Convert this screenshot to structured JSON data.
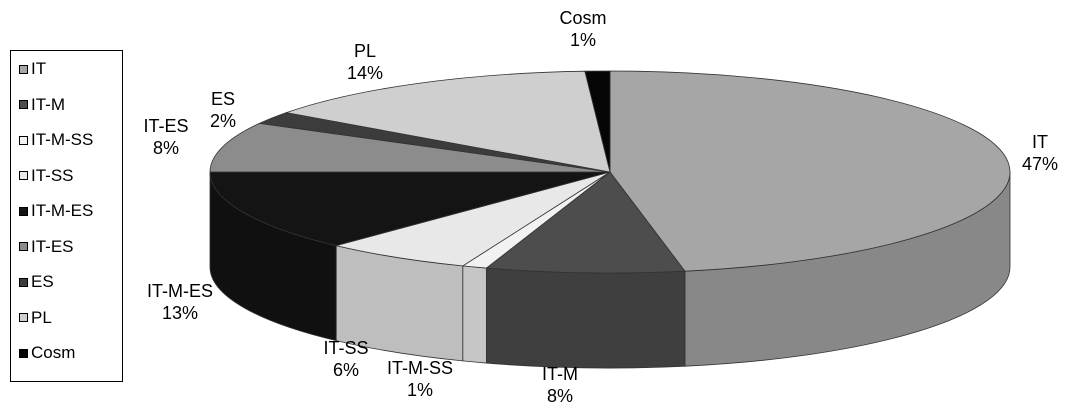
{
  "chart_data": {
    "type": "pie",
    "title": "",
    "style": "3d",
    "legend_position": "left",
    "slices": [
      {
        "label": "IT",
        "percent_label": "47%",
        "value": 47,
        "color": "#a6a6a6"
      },
      {
        "label": "IT-M",
        "percent_label": "8%",
        "value": 8,
        "color": "#4d4d4d"
      },
      {
        "label": "IT-M-SS",
        "percent_label": "1%",
        "value": 1,
        "color": "#f2f2f2"
      },
      {
        "label": "IT-SS",
        "percent_label": "6%",
        "value": 6,
        "color": "#e8e8e8"
      },
      {
        "label": "IT-M-ES",
        "percent_label": "13%",
        "value": 13,
        "color": "#141414"
      },
      {
        "label": "IT-ES",
        "percent_label": "8%",
        "value": 8,
        "color": "#8c8c8c"
      },
      {
        "label": "ES",
        "percent_label": "2%",
        "value": 2,
        "color": "#3c3c3c"
      },
      {
        "label": "PL",
        "percent_label": "14%",
        "value": 14,
        "color": "#cfcfcf"
      },
      {
        "label": "Cosm",
        "percent_label": "1%",
        "value": 1,
        "color": "#050505"
      }
    ]
  }
}
